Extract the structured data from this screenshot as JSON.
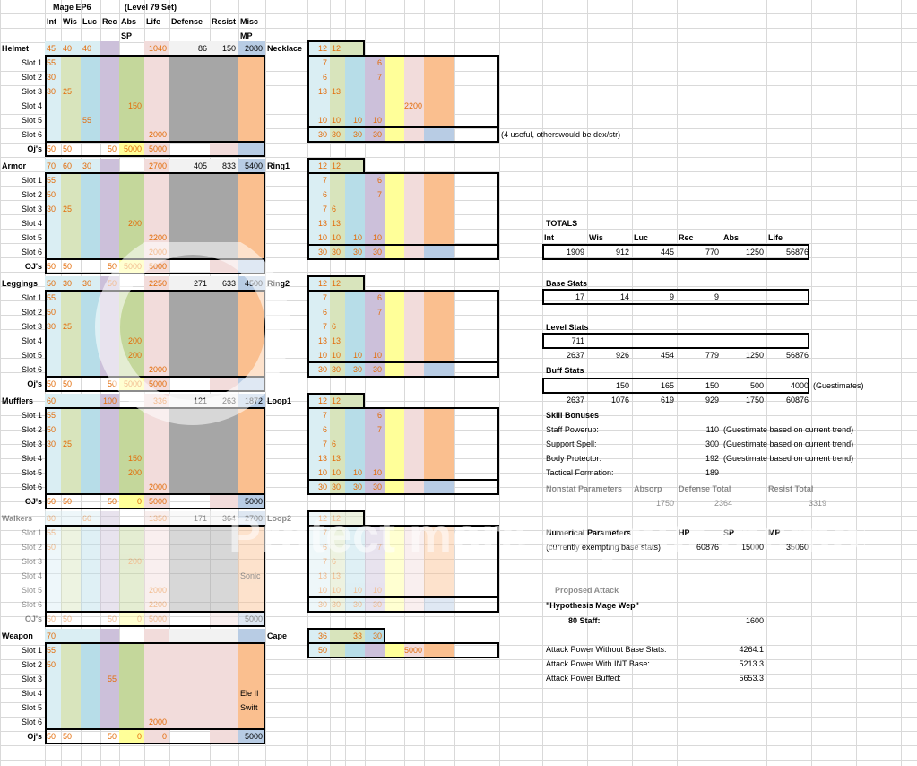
{
  "colors": {
    "int": "#daeef3",
    "wis": "#d8e4bc",
    "luc": "#b7dde8",
    "rec": "#ccc0da",
    "abs": "#c4d79b",
    "life": "#f2dcdb",
    "defense": "#a6a6a6",
    "mp": "#b8cce4",
    "misc": "#fabf8f",
    "yellow": "#ffff99",
    "orange": "#e36c09"
  },
  "header": {
    "title": "Mage EP6",
    "subtitle": "(Level 79 Set)",
    "cols": [
      "Int",
      "Wis",
      "Luc",
      "Rec",
      "Abs",
      "Life",
      "Defense",
      "Resist",
      "Misc"
    ],
    "sub_sp": "SP",
    "sub_mp": "MP"
  },
  "left_sections": [
    {
      "name": "Helmet",
      "base": [
        "45",
        "40",
        "40",
        "",
        "",
        "1040",
        "86",
        "150",
        "2080"
      ],
      "slots": [
        [
          "55",
          "",
          "",
          "",
          "",
          "",
          "",
          "",
          ""
        ],
        [
          "30",
          "",
          "",
          "",
          "",
          "",
          "",
          "",
          ""
        ],
        [
          "30",
          "25",
          "",
          "",
          "",
          "",
          "",
          "",
          ""
        ],
        [
          "",
          "",
          "",
          "",
          "150",
          "",
          "",
          "",
          ""
        ],
        [
          "",
          "",
          "55",
          "",
          "",
          "",
          "",
          "",
          ""
        ],
        [
          "",
          "",
          "",
          "",
          "",
          "2000",
          "",
          "",
          ""
        ]
      ],
      "oj_label": "Oj's",
      "oj": [
        "50",
        "50",
        "",
        "50",
        "5000",
        "5000",
        "",
        "",
        ""
      ]
    },
    {
      "name": "Armor",
      "base": [
        "70",
        "60",
        "30",
        "",
        "",
        "2700",
        "405",
        "833",
        "5400"
      ],
      "slots": [
        [
          "55",
          "",
          "",
          "",
          "",
          "",
          "",
          "",
          ""
        ],
        [
          "50",
          "",
          "",
          "",
          "",
          "",
          "",
          "",
          ""
        ],
        [
          "30",
          "25",
          "",
          "",
          "",
          "",
          "",
          "",
          ""
        ],
        [
          "",
          "",
          "",
          "",
          "200",
          "",
          "",
          "",
          ""
        ],
        [
          "",
          "",
          "",
          "",
          "",
          "2200",
          "",
          "",
          ""
        ],
        [
          "",
          "",
          "",
          "",
          "",
          "2000",
          "",
          "",
          ""
        ]
      ],
      "oj_label": "OJ's",
      "oj": [
        "50",
        "50",
        "",
        "50",
        "5000",
        "5000",
        "",
        "",
        ""
      ]
    },
    {
      "name": "Leggings",
      "base": [
        "50",
        "30",
        "30",
        "50",
        "",
        "2250",
        "271",
        "633",
        "4500"
      ],
      "slots": [
        [
          "55",
          "",
          "",
          "",
          "",
          "",
          "",
          "",
          ""
        ],
        [
          "50",
          "",
          "",
          "",
          "",
          "",
          "",
          "",
          ""
        ],
        [
          "30",
          "25",
          "",
          "",
          "",
          "",
          "",
          "",
          ""
        ],
        [
          "",
          "",
          "",
          "",
          "200",
          "",
          "",
          "",
          ""
        ],
        [
          "",
          "",
          "",
          "",
          "200",
          "",
          "",
          "",
          ""
        ],
        [
          "",
          "",
          "",
          "",
          "",
          "2000",
          "",
          "",
          ""
        ]
      ],
      "oj_label": "Oj's",
      "oj": [
        "50",
        "50",
        "",
        "50",
        "5000",
        "5000",
        "",
        "",
        ""
      ]
    },
    {
      "name": "Mufflers",
      "base": [
        "60",
        "",
        "",
        "100",
        "",
        "336",
        "121",
        "263",
        "1872"
      ],
      "slots": [
        [
          "55",
          "",
          "",
          "",
          "",
          "",
          "",
          "",
          ""
        ],
        [
          "50",
          "",
          "",
          "",
          "",
          "",
          "",
          "",
          ""
        ],
        [
          "30",
          "25",
          "",
          "",
          "",
          "",
          "",
          "",
          ""
        ],
        [
          "",
          "",
          "",
          "",
          "150",
          "",
          "",
          "",
          ""
        ],
        [
          "",
          "",
          "",
          "",
          "200",
          "",
          "",
          "",
          ""
        ],
        [
          "",
          "",
          "",
          "",
          "",
          "2000",
          "",
          "",
          ""
        ]
      ],
      "oj_label": "OJ's",
      "oj": [
        "50",
        "50",
        "",
        "50",
        "0",
        "5000",
        "",
        "",
        "5000"
      ]
    },
    {
      "name": "Walkers",
      "base": [
        "80",
        "",
        "60",
        "",
        "",
        "1350",
        "171",
        "364",
        "2700"
      ],
      "slots": [
        [
          "55",
          "",
          "",
          "",
          "",
          "",
          "",
          "",
          ""
        ],
        [
          "50",
          "",
          "",
          "",
          "",
          "",
          "",
          "",
          ""
        ],
        [
          "",
          "",
          "",
          "",
          "200",
          "",
          "",
          "",
          ""
        ],
        [
          "",
          "",
          "",
          "",
          "",
          "",
          "",
          "",
          "Sonic"
        ],
        [
          "",
          "",
          "",
          "",
          "",
          "2000",
          "",
          "",
          ""
        ],
        [
          "",
          "",
          "",
          "",
          "",
          "2200",
          "",
          "",
          ""
        ]
      ],
      "oj_label": "OJ's",
      "oj": [
        "50",
        "50",
        "",
        "50",
        "0",
        "5000",
        "",
        "",
        "5000"
      ]
    },
    {
      "name": "Weapon",
      "base": [
        "70",
        "",
        "",
        "",
        "",
        "",
        "",
        "",
        ""
      ],
      "slots": [
        [
          "55",
          "",
          "",
          "",
          "",
          "",
          "",
          "",
          ""
        ],
        [
          "50",
          "",
          "",
          "",
          "",
          "",
          "",
          "",
          ""
        ],
        [
          "",
          "",
          "",
          "55",
          "",
          "",
          "",
          "",
          ""
        ],
        [
          "",
          "",
          "",
          "",
          "",
          "",
          "",
          "",
          "Ele II"
        ],
        [
          "",
          "",
          "",
          "",
          "",
          "",
          "",
          "",
          "Swift"
        ],
        [
          "",
          "",
          "",
          "",
          "",
          "2000",
          "",
          "",
          ""
        ]
      ],
      "oj_label": "Oj's",
      "oj": [
        "50",
        "50",
        "",
        "50",
        "0",
        "0",
        "",
        "",
        "5000"
      ]
    }
  ],
  "slot_labels": [
    "Slot 1",
    "Slot 2",
    "Slot 3",
    "Slot 4",
    "Slot 5",
    "Slot 6"
  ],
  "right_sections": [
    {
      "name": "Necklace",
      "base": [
        "12",
        "12"
      ],
      "slots": [
        [
          "7",
          "",
          "",
          "6",
          "",
          "",
          ""
        ],
        [
          "6",
          "",
          "",
          "7",
          "",
          "",
          ""
        ],
        [
          "13",
          "13",
          "",
          "",
          "",
          "",
          ""
        ],
        [
          "",
          "",
          "",
          "",
          "",
          "2200",
          ""
        ],
        [
          "10",
          "10",
          "10",
          "10",
          "",
          "",
          ""
        ]
      ],
      "total": [
        "30",
        "30",
        "30",
        "30"
      ],
      "note": "(4 useful, otherswould be dex/str)"
    },
    {
      "name": "Ring1",
      "base": [
        "12",
        "12"
      ],
      "slots": [
        [
          "7",
          "",
          "",
          "6",
          "",
          "",
          ""
        ],
        [
          "6",
          "",
          "",
          "7",
          "",
          "",
          ""
        ],
        [
          "7",
          "6",
          "",
          "",
          "",
          "",
          ""
        ],
        [
          "13",
          "13",
          "",
          "",
          "",
          "",
          ""
        ],
        [
          "10",
          "10",
          "10",
          "10",
          "",
          "",
          ""
        ]
      ],
      "total": [
        "30",
        "30",
        "30",
        "30"
      ],
      "note": ""
    },
    {
      "name": "Ring2",
      "base": [
        "12",
        "12"
      ],
      "slots": [
        [
          "7",
          "",
          "",
          "6",
          "",
          "",
          ""
        ],
        [
          "6",
          "",
          "",
          "7",
          "",
          "",
          ""
        ],
        [
          "7",
          "6",
          "",
          "",
          "",
          "",
          ""
        ],
        [
          "13",
          "13",
          "",
          "",
          "",
          "",
          ""
        ],
        [
          "10",
          "10",
          "10",
          "10",
          "",
          "",
          ""
        ]
      ],
      "total": [
        "30",
        "30",
        "30",
        "30"
      ],
      "note": ""
    },
    {
      "name": "Loop1",
      "base": [
        "12",
        "12"
      ],
      "slots": [
        [
          "7",
          "",
          "",
          "6",
          "",
          "",
          ""
        ],
        [
          "6",
          "",
          "",
          "7",
          "",
          "",
          ""
        ],
        [
          "7",
          "6",
          "",
          "",
          "",
          "",
          ""
        ],
        [
          "13",
          "13",
          "",
          "",
          "",
          "",
          ""
        ],
        [
          "10",
          "10",
          "10",
          "10",
          "",
          "",
          ""
        ]
      ],
      "total": [
        "30",
        "30",
        "30",
        "30"
      ],
      "note": ""
    },
    {
      "name": "Loop2",
      "base": [
        "12",
        "12"
      ],
      "slots": [
        [
          "7",
          "",
          "",
          "",
          "",
          "",
          ""
        ],
        [
          "6",
          "",
          "",
          "7",
          "",
          "",
          ""
        ],
        [
          "7",
          "6",
          "",
          "",
          "",
          "",
          ""
        ],
        [
          "13",
          "13",
          "",
          "",
          "",
          "",
          ""
        ],
        [
          "10",
          "10",
          "10",
          "10",
          "",
          "",
          ""
        ]
      ],
      "total": [
        "30",
        "30",
        "30",
        "30"
      ],
      "note": ""
    }
  ],
  "cape": {
    "name": "Cape",
    "base": [
      "36",
      "33",
      "30"
    ],
    "row": [
      "50",
      "",
      "",
      "",
      "",
      "5000",
      ""
    ]
  },
  "totals": {
    "title": "TOTALS",
    "cols": [
      "Int",
      "Wis",
      "Luc",
      "Rec",
      "Abs",
      "Life"
    ],
    "values": [
      "1909",
      "912",
      "445",
      "770",
      "1250",
      "56876"
    ],
    "base_label": "Base Stats",
    "base": [
      "17",
      "14",
      "9",
      "9",
      "",
      ""
    ],
    "level_label": "Level Stats",
    "level1": [
      "711",
      "",
      "",
      "",
      "",
      ""
    ],
    "level2": [
      "2637",
      "926",
      "454",
      "779",
      "1250",
      "56876"
    ],
    "buff_label": "Buff Stats",
    "buff": [
      "",
      "150",
      "165",
      "150",
      "500",
      "4000"
    ],
    "buff_note": "(Guestimates)",
    "final": [
      "2637",
      "1076",
      "619",
      "929",
      "1750",
      "60876"
    ]
  },
  "skills": {
    "title": "Skill Bonuses",
    "rows": [
      {
        "name": "Staff Powerup:",
        "value": "110",
        "note": "(Guestimate based on current trend)"
      },
      {
        "name": "Support Spell:",
        "value": "300",
        "note": "(Guestimate based on current trend)"
      },
      {
        "name": "Body Protector:",
        "value": "192",
        "note": "(Guestimate based on current trend)"
      },
      {
        "name": "Tactical Formation:",
        "value": "189",
        "note": ""
      }
    ]
  },
  "nonstat": {
    "label": "Nonstat Parameters",
    "absorp": "Absorp",
    "def": "Defense Total",
    "res": "Resist Total",
    "absorp_v": "1750",
    "def_v": "2364",
    "res_v": "3319"
  },
  "numerical": {
    "label": "Numerical Parameters",
    "sub": "(currently exempting base stats)",
    "hp": "HP",
    "sp": "SP",
    "mp": "MP",
    "hp_v": "60876",
    "sp_v": "15000",
    "mp_v": "35060"
  },
  "attack": {
    "proposed": "Proposed Attack",
    "hyp": "\"Hypothesis Mage Wep\"",
    "staff_label": "80 Staff:",
    "staff_v": "1600",
    "rows": [
      {
        "name": "Attack Power Without Base Stats:",
        "value": "4264.1"
      },
      {
        "name": "Attack Power With INT Base:",
        "value": "5213.3"
      },
      {
        "name": "Attack Power Buffed:",
        "value": "5653.3"
      }
    ]
  },
  "watermark": "Protect more of your memories for less!"
}
